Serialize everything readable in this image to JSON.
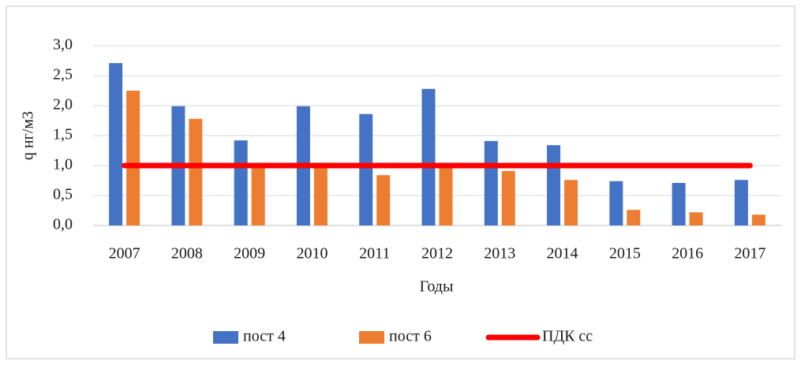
{
  "chart_data": {
    "type": "bar",
    "y_label": "q нг/м3",
    "x_label": "Годы",
    "categories": [
      "2007",
      "2008",
      "2009",
      "2010",
      "2011",
      "2012",
      "2013",
      "2014",
      "2015",
      "2016",
      "2017"
    ],
    "series": [
      {
        "name": "пост 4",
        "type": "bar",
        "color": "#4472c4",
        "values": [
          2.71,
          1.99,
          1.42,
          1.99,
          1.86,
          2.28,
          1.41,
          1.34,
          0.74,
          0.71,
          0.76
        ]
      },
      {
        "name": "пост 6",
        "type": "bar",
        "color": "#ed7d31",
        "values": [
          2.25,
          1.78,
          1.0,
          1.0,
          0.84,
          1.0,
          0.91,
          0.76,
          0.26,
          0.22,
          0.18
        ]
      },
      {
        "name": "ПДК сс",
        "type": "line",
        "color": "#ff0000",
        "values": [
          1,
          1,
          1,
          1,
          1,
          1,
          1,
          1,
          1,
          1,
          1
        ]
      }
    ],
    "ylim": [
      0,
      3
    ],
    "yticks": [
      {
        "value": 0,
        "label": "0,0"
      },
      {
        "value": 0.5,
        "label": "0,5"
      },
      {
        "value": 1,
        "label": "1,0"
      },
      {
        "value": 1.5,
        "label": "1,5"
      },
      {
        "value": 2,
        "label": "2,0"
      },
      {
        "value": 2.5,
        "label": "2,5"
      },
      {
        "value": 3,
        "label": "3,0"
      }
    ],
    "grid": true,
    "legend": "bottom"
  }
}
